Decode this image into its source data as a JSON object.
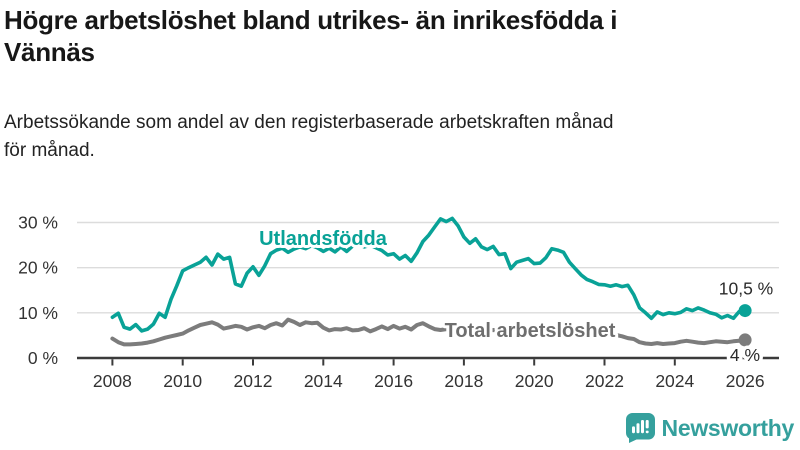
{
  "header": {
    "title_lines": [
      "Högre arbetslöshet bland utrikes- än inrikesfödda i",
      "Vännäs"
    ],
    "subtitle_lines": [
      "Arbetssökande som andel av den registerbaserade arbetskraften månad",
      "för månad."
    ]
  },
  "chart_data": {
    "type": "line",
    "title": "Högre arbetslöshet bland utrikes- än inrikesfödda i Vännäs",
    "subtitle": "Arbetssökande som andel av den registerbaserade arbetskraften månad för månad.",
    "x_start_year": 2008,
    "points_per_year": 6,
    "x_ticks": [
      2008,
      2010,
      2012,
      2014,
      2016,
      2018,
      2020,
      2022,
      2024,
      2026
    ],
    "y_ticks": [
      {
        "value": 0,
        "label": "0 %"
      },
      {
        "value": 10,
        "label": "10 %"
      },
      {
        "value": 20,
        "label": "20 %"
      },
      {
        "value": 30,
        "label": "30 %"
      }
    ],
    "ylim": [
      0,
      33
    ],
    "grid": "horizontal",
    "legend_position": "inline-labels",
    "series": [
      {
        "name": "Utlandsfödda",
        "color": "#09a297",
        "text_color": "#09a297",
        "end_label": "10,5 %",
        "end_value": 10.5,
        "values": [
          9.0,
          9.9,
          6.8,
          6.4,
          7.4,
          6.0,
          6.4,
          7.5,
          9.9,
          9.0,
          13.0,
          16.0,
          19.3,
          20.0,
          20.6,
          21.2,
          22.3,
          20.6,
          23.0,
          21.9,
          22.3,
          16.4,
          15.9,
          18.8,
          20.2,
          18.3,
          20.4,
          23.1,
          23.9,
          24.3,
          23.4,
          24.1,
          24.6,
          24.2,
          24.9,
          24.4,
          23.6,
          24.3,
          23.5,
          24.6,
          23.6,
          24.8,
          25.2,
          24.6,
          25.0,
          24.4,
          23.8,
          22.8,
          23.1,
          21.9,
          22.7,
          21.4,
          23.3,
          25.8,
          27.2,
          29.0,
          30.8,
          30.2,
          30.9,
          29.3,
          26.8,
          25.4,
          26.4,
          24.6,
          24.0,
          24.7,
          22.9,
          23.1,
          19.8,
          21.2,
          21.6,
          22.0,
          20.9,
          21.0,
          22.2,
          24.2,
          23.9,
          23.4,
          21.2,
          19.8,
          18.4,
          17.4,
          16.9,
          16.3,
          16.2,
          15.9,
          16.2,
          15.8,
          16.1,
          14.0,
          11.1,
          10.0,
          8.8,
          10.2,
          9.6,
          10.0,
          9.8,
          10.1,
          10.9,
          10.5,
          11.1,
          10.6,
          10.0,
          9.7,
          8.9,
          9.4,
          8.8,
          10.3,
          10.5
        ]
      },
      {
        "name": "Total arbetslöshet",
        "color": "#7c7c7c",
        "text_color": "#6e6e6e",
        "end_label": "4 %",
        "end_value": 4.0,
        "values": [
          4.3,
          3.5,
          3.0,
          3.0,
          3.1,
          3.2,
          3.4,
          3.7,
          4.1,
          4.5,
          4.8,
          5.1,
          5.4,
          6.1,
          6.7,
          7.3,
          7.6,
          7.9,
          7.4,
          6.5,
          6.8,
          7.1,
          6.9,
          6.3,
          6.8,
          7.1,
          6.6,
          7.3,
          7.7,
          7.2,
          8.5,
          8.0,
          7.3,
          7.9,
          7.7,
          7.8,
          6.7,
          6.1,
          6.4,
          6.3,
          6.6,
          6.1,
          6.2,
          6.6,
          5.9,
          6.4,
          7.0,
          6.4,
          7.1,
          6.5,
          6.9,
          6.3,
          7.3,
          7.7,
          7.0,
          6.4,
          6.2,
          6.4,
          6.3,
          6.5,
          6.2,
          6.4,
          6.1,
          6.3,
          6.0,
          6.2,
          6.0,
          6.1,
          5.9,
          6.0,
          6.2,
          6.1,
          6.0,
          6.3,
          6.5,
          6.3,
          6.1,
          6.0,
          5.9,
          5.7,
          5.8,
          5.6,
          5.5,
          5.6,
          5.4,
          5.2,
          5.1,
          4.8,
          4.4,
          4.2,
          3.5,
          3.2,
          3.1,
          3.3,
          3.1,
          3.2,
          3.3,
          3.6,
          3.8,
          3.6,
          3.4,
          3.3,
          3.5,
          3.7,
          3.6,
          3.5,
          3.7,
          3.8,
          4.0
        ]
      }
    ]
  },
  "footer": {
    "brand": "Newsworthy",
    "brand_color": "#35a09d"
  },
  "colors": {
    "title": "#171717",
    "subtitle": "#222222",
    "axis_text": "#333333",
    "axis_line": "#3b3b3b",
    "gridline": "#dcdcdc",
    "annotation": "#2b2b2b",
    "background": "#ffffff"
  }
}
